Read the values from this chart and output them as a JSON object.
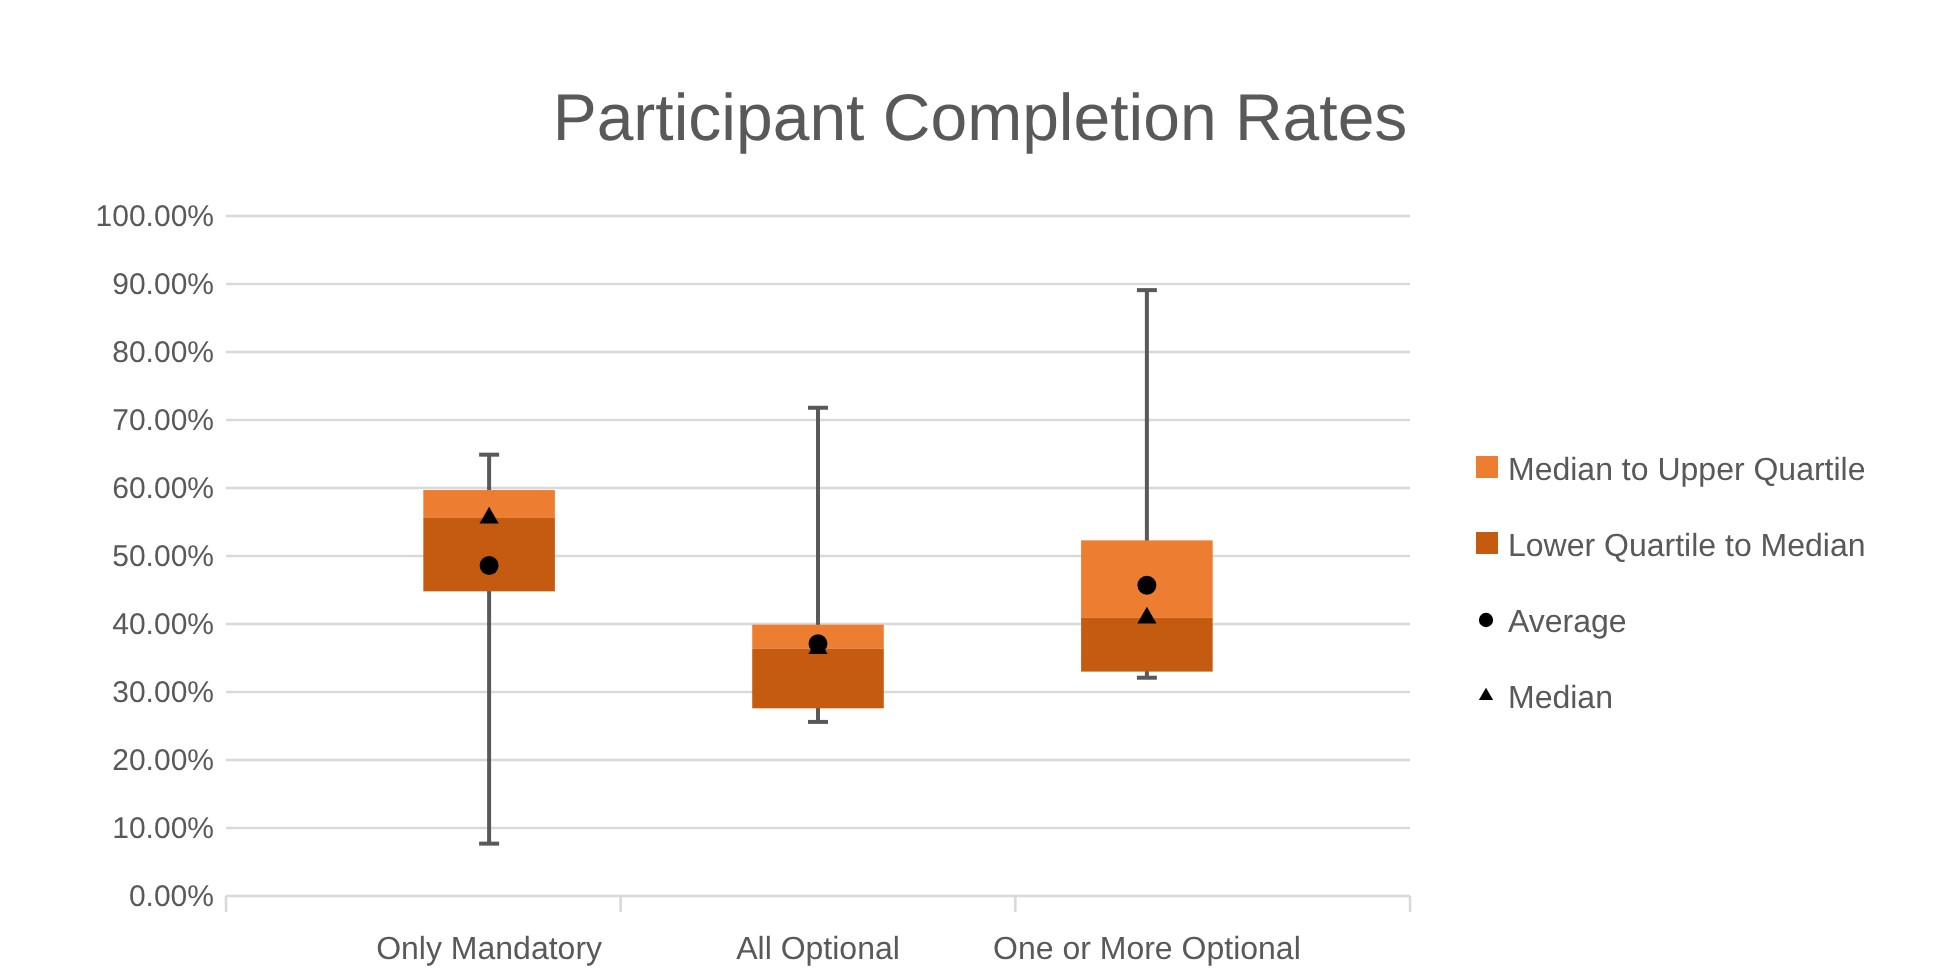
{
  "chart_data": {
    "type": "bar",
    "title": "Participant Completion Rates",
    "categories": [
      "Only Mandatory",
      "All Optional",
      "One or More Optional"
    ],
    "series": [
      {
        "name": "Median to Upper Quartile",
        "color": "#ed7d31",
        "base": [
          55.6,
          36.4,
          40.9
        ],
        "values": [
          4.1,
          3.5,
          11.4
        ],
        "errors": [
          [
            7.7,
            64.9
          ],
          [
            25.6,
            71.8
          ],
          [
            32.1,
            89.1
          ]
        ]
      },
      {
        "name": "Lower Quartile to Median",
        "color": "#c55a11",
        "base": [
          44.8,
          27.6,
          33.0
        ],
        "values": [
          10.8,
          8.8,
          7.9
        ]
      },
      {
        "name": "Average",
        "type": "scatter",
        "marker": "circle",
        "color": "#000000",
        "x": [
          "Only Mandatory",
          "All Optional",
          "One or More Optional"
        ],
        "values": [
          48.6,
          37.1,
          45.7
        ]
      },
      {
        "name": "Median",
        "type": "scatter",
        "marker": "triangle",
        "color": "#000000",
        "x": [
          "Only Mandatory",
          "All Optional",
          "One or More Optional"
        ],
        "values": [
          55.6,
          36.4,
          40.9
        ]
      }
    ],
    "ylim": [
      0,
      100
    ],
    "yticks": [
      {
        "value": 0,
        "label": "0.00%"
      },
      {
        "value": 10,
        "label": "10.00%"
      },
      {
        "value": 20,
        "label": "20.00%"
      },
      {
        "value": 30,
        "label": "30.00%"
      },
      {
        "value": 40,
        "label": "40.00%"
      },
      {
        "value": 50,
        "label": "50.00%"
      },
      {
        "value": 60,
        "label": "60.00%"
      },
      {
        "value": 70,
        "label": "70.00%"
      },
      {
        "value": 80,
        "label": "80.00%"
      },
      {
        "value": 90,
        "label": "90.00%"
      },
      {
        "value": 100,
        "label": "100.00%"
      }
    ],
    "grid": "y",
    "legend": "right"
  }
}
